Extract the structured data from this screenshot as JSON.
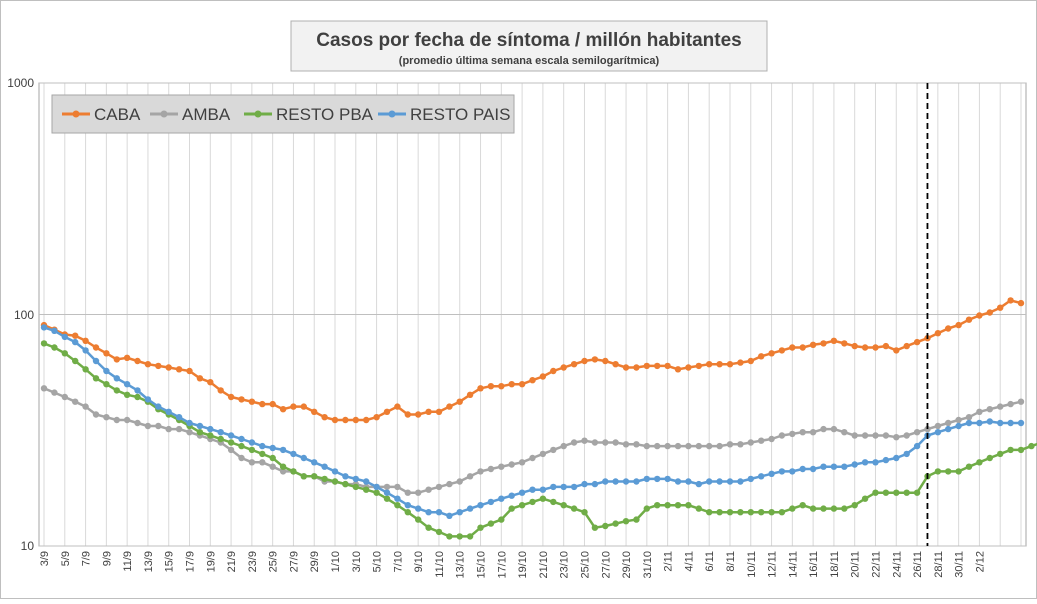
{
  "chart_data": {
    "type": "line",
    "title": "Casos por fecha de síntoma / millón habitantes",
    "subtitle": "(promedio última semana escala semilogarítmica)",
    "xlabel": "",
    "ylabel": "",
    "yscale": "log",
    "ylim": [
      10,
      1000
    ],
    "y_ticks": [
      "1000",
      "100",
      "10"
    ],
    "grid": true,
    "legend_position": "top-left",
    "vertical_marker_index": 85,
    "x_ticks": [
      "3/9",
      "5/9",
      "7/9",
      "9/9",
      "11/9",
      "13/9",
      "15/9",
      "17/9",
      "19/9",
      "21/9",
      "23/9",
      "25/9",
      "27/9",
      "29/9",
      "1/10",
      "3/10",
      "5/10",
      "7/10",
      "9/10",
      "11/10",
      "13/10",
      "15/10",
      "17/10",
      "19/10",
      "21/10",
      "23/10",
      "25/10",
      "27/10",
      "29/10",
      "31/10",
      "2/11",
      "4/11",
      "6/11",
      "8/11",
      "10/11",
      "12/11",
      "14/11",
      "16/11",
      "18/11",
      "20/11",
      "22/11",
      "24/11",
      "26/11",
      "28/11",
      "30/11",
      "2/12"
    ],
    "series": [
      {
        "name": "CABA",
        "color": "#ED7D31",
        "values": [
          90,
          86,
          82,
          81,
          77,
          72,
          68,
          64,
          65,
          63,
          61,
          60,
          59,
          58,
          57,
          53,
          51,
          47,
          44,
          43,
          42,
          41,
          41,
          39,
          40,
          40,
          38,
          36,
          35,
          35,
          35,
          35,
          36,
          38,
          40,
          37,
          37,
          38,
          38,
          40,
          42,
          45,
          48,
          49,
          49,
          50,
          50,
          52,
          54,
          57,
          59,
          61,
          63,
          64,
          63,
          61,
          59,
          59,
          60,
          60,
          60,
          58,
          59,
          60,
          61,
          61,
          61,
          62,
          63,
          66,
          68,
          70,
          72,
          72,
          74,
          75,
          77,
          75,
          73,
          72,
          72,
          73,
          70,
          73,
          76,
          79,
          83,
          87,
          90,
          95,
          99,
          102,
          107,
          115,
          112
        ]
      },
      {
        "name": "AMBA",
        "color": "#A5A5A5",
        "values": [
          48,
          46,
          44,
          42,
          40,
          37,
          36,
          35,
          35,
          34,
          33,
          33,
          32,
          32,
          31,
          30,
          29,
          28,
          26,
          24,
          23,
          23,
          22,
          21,
          21,
          20,
          20,
          19,
          19,
          18.5,
          18.5,
          18,
          18,
          18,
          18,
          17,
          17,
          17.5,
          18,
          18.5,
          19,
          20,
          21,
          21.5,
          22,
          22.5,
          23,
          24,
          25,
          26,
          27,
          28,
          28.5,
          28,
          28,
          28,
          27.5,
          27.5,
          27,
          27,
          27,
          27,
          27,
          27,
          27,
          27,
          27.5,
          27.5,
          28,
          28.5,
          29,
          30,
          30.5,
          31,
          31,
          32,
          32,
          31,
          30,
          30,
          30,
          30,
          29.5,
          30,
          31,
          32,
          33,
          34,
          35,
          36,
          38,
          39,
          40,
          41,
          42
        ]
      },
      {
        "name": "RESTO PBA",
        "color": "#70AD47",
        "values": [
          75,
          72,
          68,
          63,
          58,
          53,
          50,
          47,
          45,
          44,
          42,
          39,
          37,
          35,
          33,
          31,
          30,
          29,
          28,
          27,
          26,
          25,
          24,
          22,
          21,
          20,
          20,
          19.5,
          19,
          18.5,
          18,
          17.5,
          17,
          16,
          15,
          14,
          13,
          12,
          11.5,
          11,
          11,
          11,
          12,
          12.5,
          13,
          14.5,
          15,
          15.5,
          16,
          15.5,
          15,
          14.5,
          14,
          12,
          12.2,
          12.5,
          12.8,
          13,
          14.5,
          15,
          15,
          15,
          15,
          14.5,
          14,
          14,
          14,
          14,
          14,
          14,
          14,
          14,
          14.5,
          15,
          14.5,
          14.5,
          14.5,
          14.5,
          15,
          16,
          17,
          17,
          17,
          17,
          17,
          20,
          21,
          21,
          21,
          22,
          23,
          24,
          25,
          26,
          26,
          27,
          28
        ]
      },
      {
        "name": "RESTO PAIS",
        "color": "#5B9BD5",
        "values": [
          88,
          85,
          80,
          76,
          70,
          63,
          57,
          53,
          50,
          47,
          43,
          40,
          38,
          36,
          34,
          33,
          32,
          31,
          30,
          29,
          28,
          27,
          26.5,
          26,
          25,
          24,
          23,
          22,
          21,
          20,
          19.5,
          19,
          18,
          17,
          16,
          15,
          14.5,
          14,
          14,
          13.5,
          14,
          14.5,
          15,
          15.5,
          16,
          16.5,
          17,
          17.5,
          17.5,
          18,
          18,
          18,
          18.5,
          18.5,
          19,
          19,
          19,
          19,
          19.5,
          19.5,
          19.5,
          19,
          19,
          18.5,
          19,
          19,
          19,
          19,
          19.5,
          20,
          20.5,
          21,
          21,
          21.5,
          21.5,
          22,
          22,
          22,
          22.5,
          23,
          23,
          23.5,
          24,
          25,
          27,
          30,
          31,
          32,
          33,
          34,
          34,
          34.5,
          34,
          34,
          34
        ]
      }
    ]
  }
}
